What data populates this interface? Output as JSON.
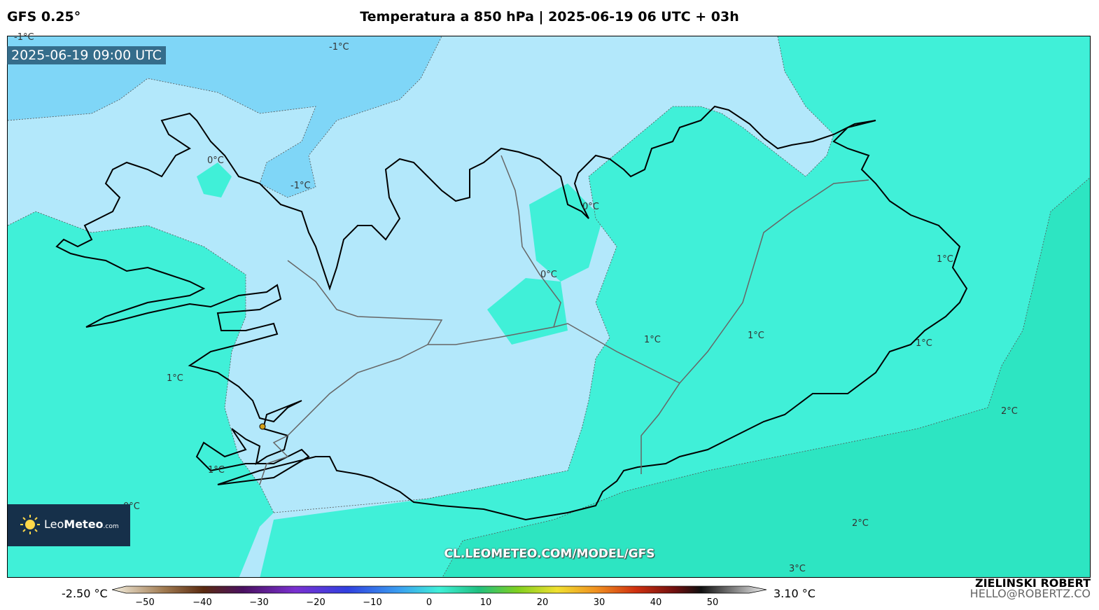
{
  "header": {
    "model": "GFS 0.25°",
    "title": "Temperatura a 850 hPa | 2025-06-19 06 UTC + 03h"
  },
  "map": {
    "valid_time": "2025-06-19 09:00 UTC",
    "watermark_url": "CL.LEOMETEO.COM/MODEL/GFS",
    "contour_labels": [
      "-1°C",
      "0°C",
      "-1°C",
      "0°C",
      "0°C",
      "1°C",
      "1°C",
      "1°C",
      "1°C",
      "1°C",
      "2°C",
      "2°C",
      "3°C",
      "-1°C",
      "1°C",
      "0°C"
    ],
    "colors": {
      "ocean_cold": "#7fd6f7",
      "zero_band": "#b3e8fb",
      "one_band": "#40f0d8",
      "two_band": "#2de5c2",
      "coast": "#000000",
      "roads": "#666666"
    }
  },
  "logo": {
    "name_light": "Leo",
    "name_bold": "Meteo",
    "suffix": ".com"
  },
  "colorbar": {
    "min_label": "-2.50 °C",
    "max_label": "3.10 °C",
    "ticks": [
      "−50",
      "−40",
      "−30",
      "−20",
      "−10",
      "0",
      "10",
      "20",
      "30",
      "40",
      "50"
    ]
  },
  "credits": {
    "author": "ZIELINSKI ROBERT",
    "email": "HELLO@ROBERTZ.CO"
  }
}
